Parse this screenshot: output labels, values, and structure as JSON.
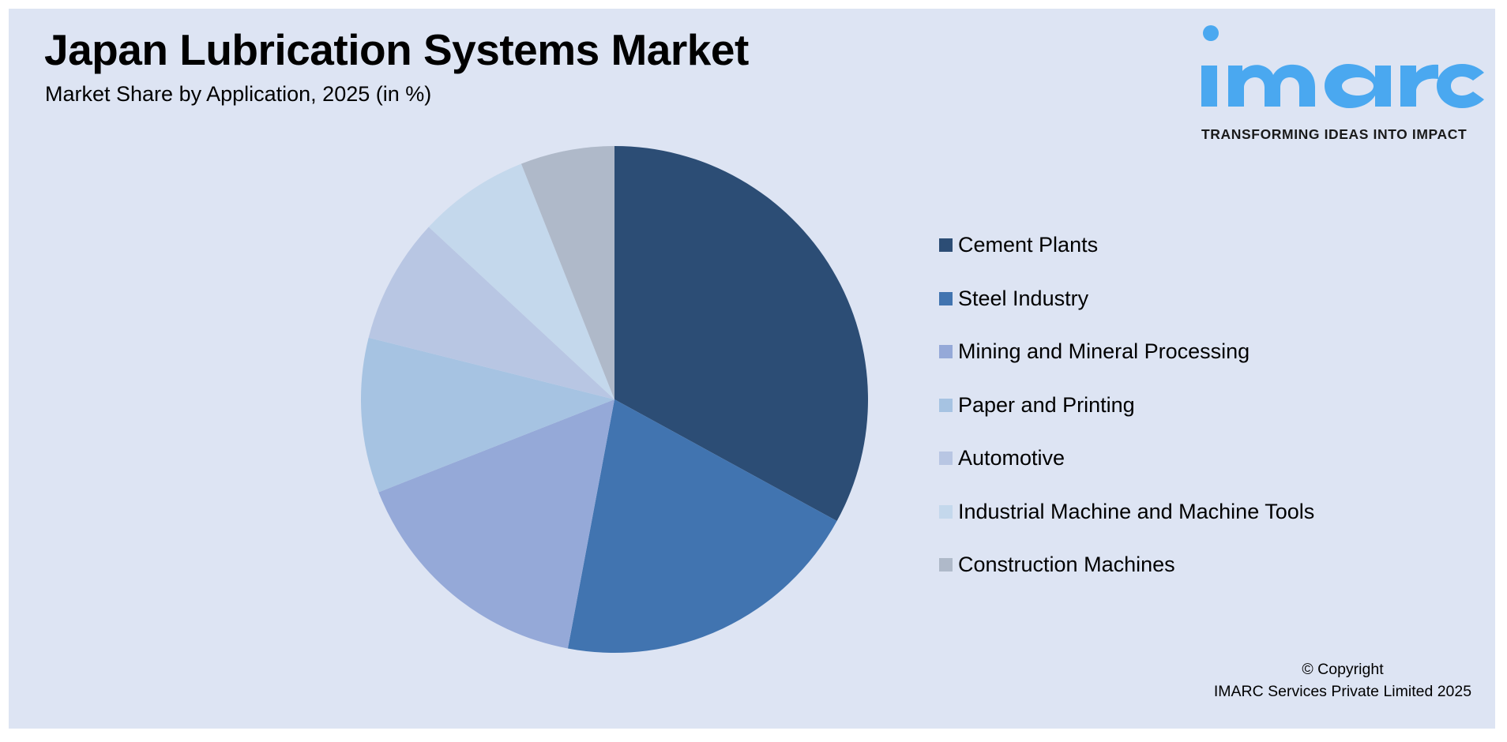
{
  "header": {
    "title": "Japan Lubrication Systems Market",
    "subtitle": "Market Share by Application, 2025 (in %)"
  },
  "logo": {
    "wordmark": "imarc",
    "tagline": "TRANSFORMING IDEAS INTO IMPACT",
    "color": "#4aa8f0"
  },
  "footer": {
    "copyright_line1": "© Copyright",
    "copyright_line2": "IMARC Services Private Limited 2025"
  },
  "colors": {
    "background": "#dde4f3",
    "border": "#ffffff"
  },
  "chart_data": {
    "type": "pie",
    "title": "Japan Lubrication Systems Market",
    "subtitle": "Market Share by Application, 2025 (in %)",
    "categories": [
      "Cement Plants",
      "Steel Industry",
      "Mining and Mineral Processing",
      "Paper and Printing",
      "Automotive",
      "Industrial Machine and Machine Tools",
      "Construction Machines"
    ],
    "values": [
      33.0,
      20.0,
      16.1,
      9.9,
      8.0,
      7.1,
      6.0
    ],
    "colors": [
      "#2c4d75",
      "#4174b0",
      "#95a9d8",
      "#a6c3e2",
      "#b8c6e3",
      "#c4d8ec",
      "#afb9c9"
    ],
    "start_angle_deg": 0,
    "direction": "clockwise",
    "data_labels": false,
    "legend_position": "right",
    "unit": "%"
  },
  "legend": {
    "items": [
      {
        "label": "Cement Plants",
        "color": "#2c4d75"
      },
      {
        "label": "Steel Industry",
        "color": "#4174b0"
      },
      {
        "label": "Mining and Mineral Processing",
        "color": "#95a9d8"
      },
      {
        "label": "Paper and Printing",
        "color": "#a6c3e2"
      },
      {
        "label": "Automotive",
        "color": "#b8c6e3"
      },
      {
        "label": "Industrial Machine and Machine Tools",
        "color": "#c4d8ec"
      },
      {
        "label": "Construction Machines",
        "color": "#afb9c9"
      }
    ]
  }
}
